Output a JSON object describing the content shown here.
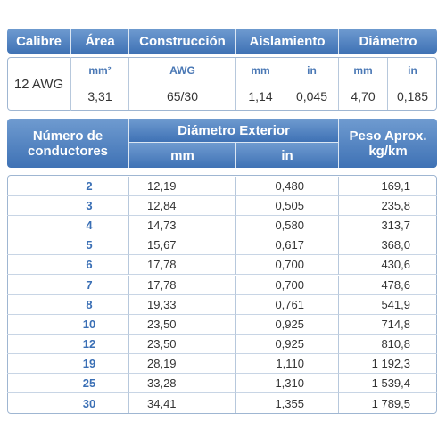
{
  "header": {
    "columns": [
      "Calibre",
      "Área",
      "Construcción",
      "Aislamiento",
      "Diámetro"
    ]
  },
  "spec": {
    "calibre": "12 AWG",
    "units": [
      "mm²",
      "AWG",
      "mm",
      "in",
      "mm",
      "in"
    ],
    "values": [
      "3,31",
      "65/30",
      "1,14",
      "0,045",
      "4,70",
      "0,185"
    ]
  },
  "table": {
    "headers": {
      "conductors": "Número de conductores",
      "diameter": "Diámetro Exterior",
      "diameter_units": [
        "mm",
        "in"
      ],
      "weight": "Peso Aprox.",
      "weight_unit": "kg/km"
    },
    "rows": [
      [
        "2",
        "12,19",
        "0,480",
        "169,1"
      ],
      [
        "3",
        "12,84",
        "0,505",
        "235,8"
      ],
      [
        "4",
        "14,73",
        "0,580",
        "313,7"
      ],
      [
        "5",
        "15,67",
        "0,617",
        "368,0"
      ],
      [
        "6",
        "17,78",
        "0,700",
        "430,6"
      ],
      [
        "7",
        "17,78",
        "0,700",
        "478,6"
      ],
      [
        "8",
        "19,33",
        "0,761",
        "541,9"
      ],
      [
        "10",
        "23,50",
        "0,925",
        "714,8"
      ],
      [
        "12",
        "23,50",
        "0,925",
        "810,8"
      ],
      [
        "19",
        "28,19",
        "1,110",
        "1 192,3"
      ],
      [
        "25",
        "33,28",
        "1,310",
        "1 539,4"
      ],
      [
        "30",
        "34,41",
        "1,355",
        "1 789,5"
      ]
    ]
  }
}
